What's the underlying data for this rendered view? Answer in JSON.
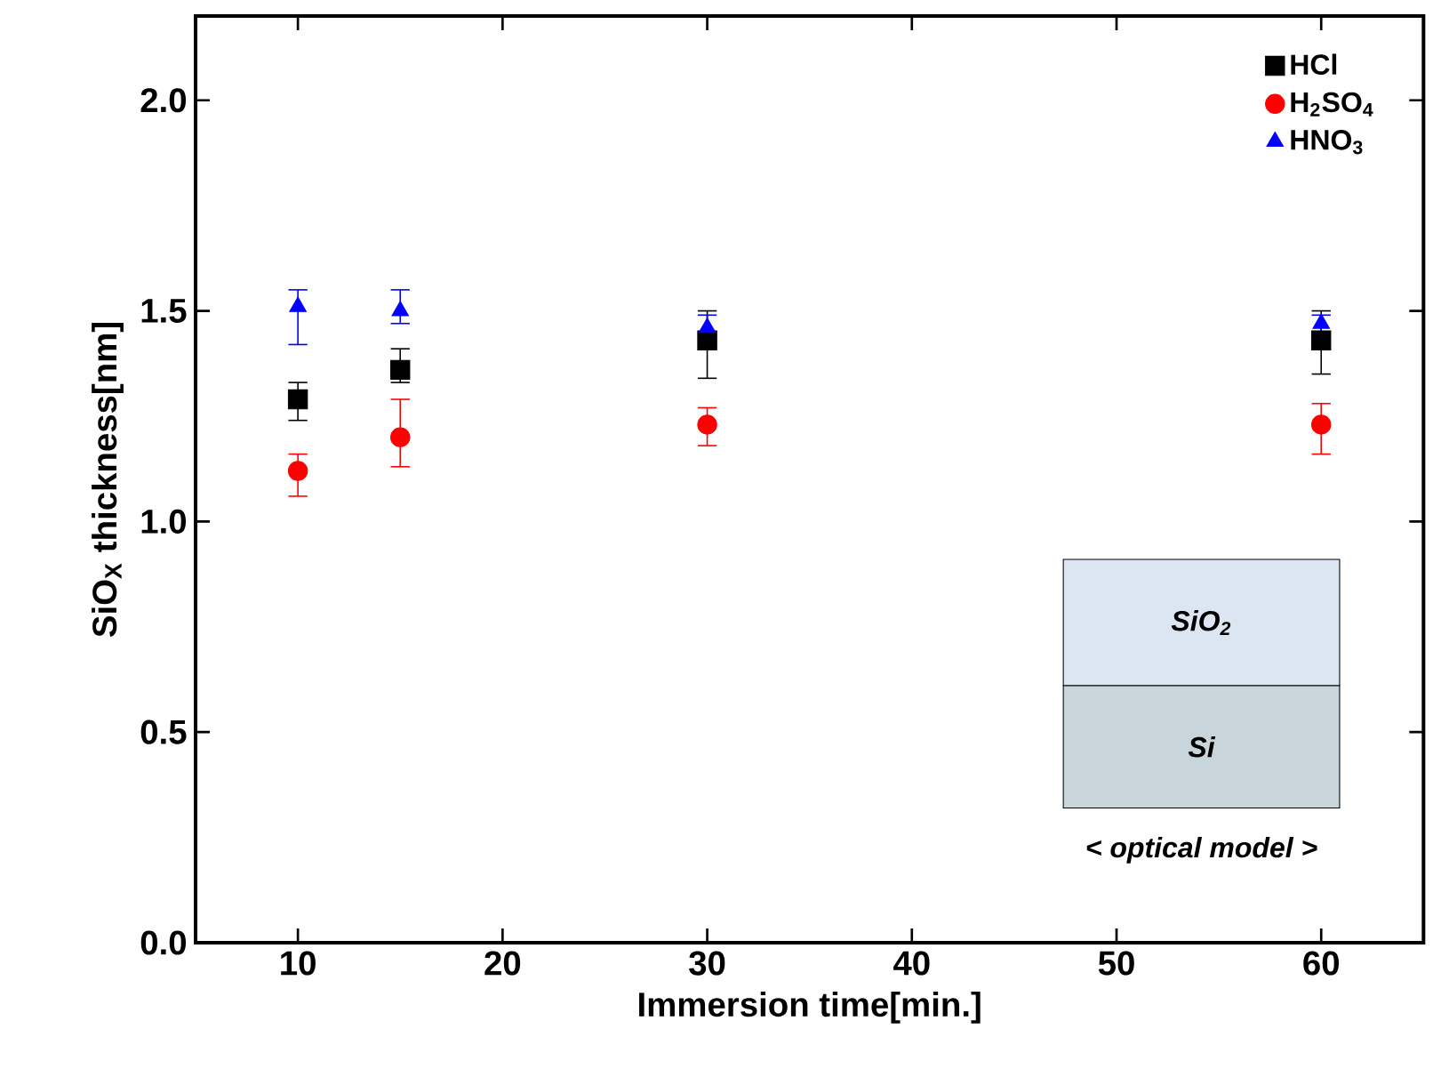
{
  "chart_data": {
    "type": "scatter",
    "xlabel": "Immersion time[min.]",
    "ylabel": "SiO$_{X}$ thickness[nm]",
    "x": [
      10,
      15,
      30,
      60
    ],
    "xlim": [
      5,
      65
    ],
    "ylim": [
      0,
      2.2
    ],
    "xticks": [
      10,
      20,
      30,
      40,
      50,
      60
    ],
    "yticks": [
      {
        "value": 0,
        "label": "0.0"
      },
      {
        "value": 0.5,
        "label": "0.5"
      },
      {
        "value": 1,
        "label": "1.0"
      },
      {
        "value": 1.5,
        "label": "1.5"
      },
      {
        "value": 2,
        "label": "2.0"
      }
    ],
    "legend": "top right",
    "grid": false,
    "series": [
      {
        "name": "HCl",
        "color": "#000000",
        "marker": "square",
        "values": [
          1.29,
          1.36,
          1.43,
          1.43
        ],
        "errors": [
          [
            1.24,
            1.33
          ],
          [
            1.33,
            1.41
          ],
          [
            1.34,
            1.5
          ],
          [
            1.35,
            1.5
          ]
        ]
      },
      {
        "name": "H$_{2}$SO$_{4}$",
        "color": "#ff0000",
        "marker": "circle",
        "values": [
          1.12,
          1.2,
          1.23,
          1.23
        ],
        "errors": [
          [
            1.06,
            1.16
          ],
          [
            1.13,
            1.29
          ],
          [
            1.18,
            1.27
          ],
          [
            1.16,
            1.28
          ]
        ]
      },
      {
        "name": "HNO$_{3}$",
        "color": "#0000ff",
        "marker": "triangle",
        "values": [
          1.51,
          1.5,
          1.46,
          1.47
        ],
        "errors": [
          [
            1.42,
            1.55
          ],
          [
            1.47,
            1.55
          ],
          [
            1.44,
            1.49
          ],
          [
            1.44,
            1.49
          ]
        ]
      }
    ],
    "annotations": [
      "SiO$_{2}$",
      "Si",
      "< optical model >"
    ]
  }
}
